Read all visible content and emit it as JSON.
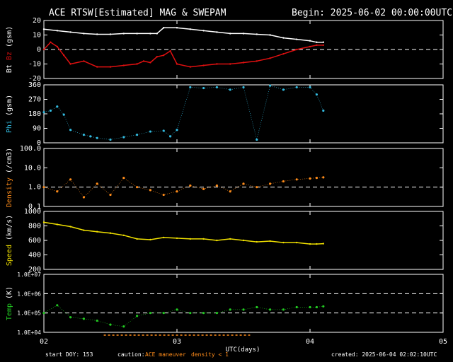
{
  "header": {
    "title": "ACE RTSW[Estimated] MAG & SWEPAM",
    "begin": "Begin: 2025-06-02 00:00:00UTC"
  },
  "footer": {
    "start_doy": "start DOY: 153",
    "caution_label": "caution:",
    "ace_maneuver": "ACE maneuver",
    "density_note": "density < 1",
    "created": "created: 2025-06-04 02:02:10UTC"
  },
  "colors": {
    "bt": "#ffffff",
    "bz": "#e01010",
    "phi": "#33bbe0",
    "density": "#ff8c1a",
    "speed": "#f0e000",
    "temp": "#22cc22",
    "axis": "#ffffff",
    "maneuver": "#ff8c1a",
    "density_flag": "#ff8c1a"
  },
  "chart_data": [
    {
      "type": "line",
      "title": "Bt / Bz",
      "ylabel_parts": [
        "Bt",
        "Bz",
        "(gsm)"
      ],
      "yticks": [
        "20",
        "10",
        "0",
        "-10",
        "-20"
      ],
      "ylim": [
        -20,
        20
      ],
      "dashed_at": [
        0
      ],
      "series": [
        {
          "name": "Bt",
          "color": "#ffffff",
          "x": [
            2.0,
            2.1,
            2.2,
            2.3,
            2.4,
            2.5,
            2.6,
            2.7,
            2.8,
            2.85,
            2.9,
            3.0,
            3.1,
            3.2,
            3.3,
            3.4,
            3.5,
            3.6,
            3.7,
            3.8,
            3.9,
            4.0,
            4.05,
            4.1
          ],
          "y": [
            14,
            13,
            12,
            11,
            10.5,
            10.5,
            11,
            11,
            11,
            11,
            15,
            15,
            14,
            13,
            12,
            11,
            11,
            10.5,
            10,
            8,
            7,
            6,
            5,
            5
          ]
        },
        {
          "name": "Bz",
          "color": "#e01010",
          "x": [
            2.0,
            2.05,
            2.1,
            2.15,
            2.2,
            2.3,
            2.4,
            2.5,
            2.6,
            2.7,
            2.75,
            2.8,
            2.85,
            2.9,
            2.95,
            3.0,
            3.1,
            3.2,
            3.3,
            3.4,
            3.5,
            3.6,
            3.7,
            3.8,
            3.9,
            4.0,
            4.05,
            4.1
          ],
          "y": [
            0,
            5,
            2,
            -4,
            -10,
            -8,
            -12,
            -12,
            -11,
            -10,
            -8,
            -9,
            -5,
            -4,
            -1,
            -10,
            -12,
            -11,
            -10,
            -10,
            -9,
            -8,
            -6,
            -3,
            0,
            2,
            3,
            3
          ]
        }
      ]
    },
    {
      "type": "scatter",
      "title": "Phi",
      "ylabel_parts": [
        "Phi",
        "(gsm)"
      ],
      "yticks": [
        "360",
        "270",
        "180",
        "90",
        "0"
      ],
      "ylim": [
        0,
        360
      ],
      "dashed_at": [],
      "series": [
        {
          "name": "Phi",
          "color": "#33bbe0",
          "x": [
            2.0,
            2.05,
            2.1,
            2.15,
            2.2,
            2.3,
            2.35,
            2.4,
            2.5,
            2.6,
            2.7,
            2.8,
            2.9,
            2.95,
            3.0,
            3.1,
            3.2,
            3.3,
            3.4,
            3.5,
            3.6,
            3.7,
            3.8,
            3.9,
            4.0,
            4.05,
            4.1
          ],
          "y": [
            190,
            200,
            225,
            175,
            80,
            50,
            40,
            30,
            20,
            35,
            50,
            70,
            75,
            40,
            80,
            345,
            340,
            345,
            330,
            345,
            20,
            355,
            330,
            345,
            345,
            300,
            200
          ]
        }
      ]
    },
    {
      "type": "scatter",
      "title": "Density",
      "ylabel_parts": [
        "Density",
        "(/cm3)"
      ],
      "yticks": [
        "100.0",
        "10.0",
        "1.0",
        "0.1"
      ],
      "ylim": [
        0.1,
        100
      ],
      "log": true,
      "dashed_at": [
        1.0
      ],
      "series": [
        {
          "name": "Density",
          "color": "#ff8c1a",
          "x": [
            2.0,
            2.1,
            2.2,
            2.3,
            2.4,
            2.5,
            2.6,
            2.7,
            2.8,
            2.9,
            3.0,
            3.1,
            3.2,
            3.3,
            3.4,
            3.5,
            3.6,
            3.7,
            3.8,
            3.9,
            4.0,
            4.05,
            4.1
          ],
          "y": [
            1.0,
            0.6,
            2.5,
            0.3,
            1.5,
            0.4,
            3.0,
            1.0,
            0.7,
            0.4,
            0.6,
            1.2,
            0.8,
            1.2,
            0.6,
            1.5,
            1.0,
            1.5,
            2.0,
            2.5,
            2.8,
            3.0,
            3.2
          ]
        }
      ]
    },
    {
      "type": "line",
      "title": "Speed",
      "ylabel_parts": [
        "Speed",
        "(km/s)"
      ],
      "yticks": [
        "1000",
        "800",
        "600",
        "400",
        "200"
      ],
      "ylim": [
        200,
        1000
      ],
      "dashed_at": [],
      "series": [
        {
          "name": "Speed",
          "color": "#f0e000",
          "x": [
            2.0,
            2.1,
            2.2,
            2.3,
            2.4,
            2.5,
            2.6,
            2.7,
            2.8,
            2.9,
            3.0,
            3.1,
            3.2,
            3.3,
            3.4,
            3.5,
            3.6,
            3.7,
            3.8,
            3.9,
            4.0,
            4.05,
            4.1
          ],
          "y": [
            850,
            820,
            790,
            740,
            720,
            700,
            670,
            620,
            610,
            640,
            630,
            620,
            620,
            600,
            620,
            600,
            580,
            590,
            570,
            570,
            550,
            550,
            555
          ]
        }
      ]
    },
    {
      "type": "scatter",
      "title": "Temp",
      "ylabel_parts": [
        "Temp",
        "(K)"
      ],
      "yticks": [
        "1.0E+07",
        "1.0E+06",
        "1.0E+05",
        "1.0E+04"
      ],
      "ylim": [
        10000,
        10000000
      ],
      "log": true,
      "dashed_at": [
        1000000,
        100000
      ],
      "series": [
        {
          "name": "Temp",
          "color": "#22cc22",
          "x": [
            2.0,
            2.1,
            2.2,
            2.3,
            2.4,
            2.5,
            2.6,
            2.7,
            2.8,
            2.9,
            3.0,
            3.1,
            3.2,
            3.3,
            3.4,
            3.5,
            3.6,
            3.7,
            3.8,
            3.9,
            4.0,
            4.05,
            4.1
          ],
          "y": [
            100000,
            250000,
            60000,
            50000,
            40000,
            25000,
            20000,
            70000,
            100000,
            100000,
            150000,
            100000,
            100000,
            100000,
            150000,
            150000,
            200000,
            150000,
            150000,
            200000,
            200000,
            200000,
            220000
          ]
        }
      ]
    }
  ],
  "x_axis": {
    "xlabel": "UTC(days)",
    "xlim": [
      2,
      5
    ],
    "ticks": [
      "02",
      "03",
      "04",
      "05"
    ]
  }
}
